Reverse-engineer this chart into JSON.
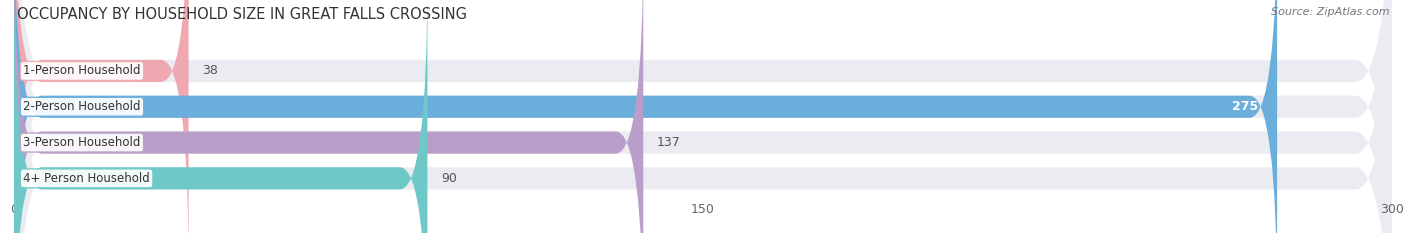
{
  "title": "OCCUPANCY BY HOUSEHOLD SIZE IN GREAT FALLS CROSSING",
  "source": "Source: ZipAtlas.com",
  "categories": [
    "1-Person Household",
    "2-Person Household",
    "3-Person Household",
    "4+ Person Household"
  ],
  "values": [
    38,
    275,
    137,
    90
  ],
  "bar_colors": [
    "#f0a8b0",
    "#6aaedc",
    "#b89ec8",
    "#6ec8c8"
  ],
  "bar_bg_color": "#f0f0f5",
  "row_bg_color": "#ebebf2",
  "xlim": [
    0,
    300
  ],
  "xticks": [
    0,
    150,
    300
  ],
  "title_fontsize": 10.5,
  "source_fontsize": 8,
  "tick_fontsize": 9,
  "bar_label_fontsize": 9,
  "cat_label_fontsize": 8.5,
  "figsize": [
    14.06,
    2.33
  ],
  "dpi": 100
}
